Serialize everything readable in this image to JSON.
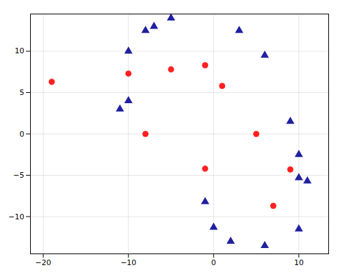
{
  "chart_data": {
    "type": "scatter",
    "series": [
      {
        "color": "#ff2020",
        "marker": "circle",
        "x": [
          -19,
          -10,
          -5,
          -1,
          1,
          -8,
          -1,
          5,
          9,
          7
        ],
        "y": [
          6.3,
          7.3,
          7.8,
          8.3,
          5.8,
          0.0,
          -4.2,
          0.0,
          -4.3,
          -8.7
        ]
      },
      {
        "color": "#2020a0",
        "marker": "triangle",
        "x": [
          -5,
          -7,
          -8,
          -10,
          -10,
          -11,
          3,
          6,
          9,
          10,
          10,
          11,
          -1,
          0,
          2,
          6,
          10
        ],
        "y": [
          14.0,
          13.0,
          12.5,
          10.0,
          4.0,
          3.0,
          12.5,
          9.5,
          1.5,
          -2.5,
          -5.3,
          -5.7,
          -8.2,
          -11.3,
          -13.0,
          -13.5,
          -11.5
        ]
      }
    ],
    "xlim": [
      -21.5,
      13.5
    ],
    "ylim": [
      -14.5,
      14.5
    ],
    "xticks": [
      -20,
      -10,
      0,
      10
    ],
    "yticks": [
      -10,
      -5,
      0,
      5,
      10
    ],
    "grid": true
  }
}
